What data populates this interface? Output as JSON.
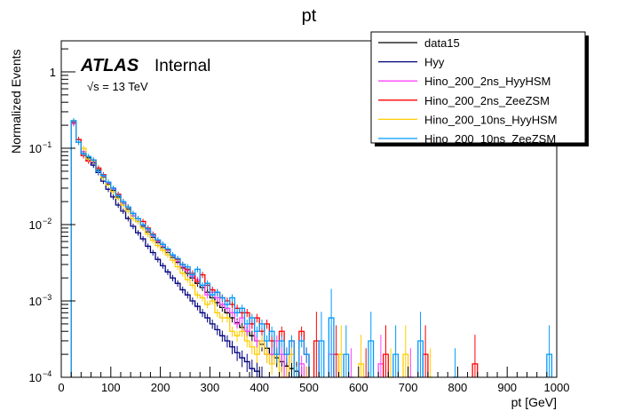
{
  "chart_data": {
    "type": "line",
    "style": "step-histogram",
    "title": "pt",
    "xlabel": "pt [GeV]",
    "ylabel": "Normalized Events",
    "xlim": [
      0,
      1000
    ],
    "ylim": [
      0.0001,
      2.55
    ],
    "yscale": "log",
    "grid": false,
    "legend_position": "top-right",
    "x_ticks": [
      "0",
      "100",
      "200",
      "300",
      "400",
      "500",
      "600",
      "700",
      "800",
      "900",
      "1000"
    ],
    "y_ticks": [
      {
        "label": "1",
        "exp": ""
      },
      {
        "label": "10",
        "exp": "−1"
      },
      {
        "label": "10",
        "exp": "−2"
      },
      {
        "label": "10",
        "exp": "−3"
      },
      {
        "label": "10",
        "exp": "−4"
      }
    ],
    "annotations": {
      "atlas": "ATLAS",
      "internal": "Internal",
      "energy": "√s = 13 TeV"
    },
    "bin_width": 10,
    "x": [
      25,
      35,
      45,
      55,
      65,
      75,
      85,
      95,
      105,
      115,
      125,
      135,
      145,
      155,
      165,
      175,
      185,
      195,
      205,
      215,
      225,
      235,
      245,
      255,
      265,
      275,
      285,
      295,
      305,
      315,
      325,
      335,
      345,
      355,
      365,
      375,
      385,
      395,
      405,
      415,
      425,
      435,
      445,
      455,
      465,
      475,
      485,
      495
    ],
    "series": [
      {
        "name": "data15",
        "color": "#000000",
        "values": [
          0.22,
          0.12,
          0.085,
          0.075,
          0.064,
          0.052,
          0.042,
          0.034,
          0.028,
          0.023,
          0.019,
          0.016,
          0.013,
          0.011,
          0.0095,
          0.008,
          0.0068,
          0.0058,
          0.005,
          0.0043,
          0.0037,
          0.0032,
          0.0027,
          0.0023,
          0.002,
          0.0017,
          0.0015,
          0.0013,
          0.0011,
          0.00095,
          0.00082,
          0.0007,
          0.0006,
          0.00052,
          0.00045,
          0.0004,
          0.00035,
          0.0003,
          0.00027,
          0.00024,
          0.0002,
          0.00018,
          0.00016,
          0.00014,
          0.00013,
          0.00012,
          0.0001,
          0.0001
        ],
        "tail": []
      },
      {
        "name": "Hyy",
        "color": "#00007f",
        "values": [
          0.21,
          0.13,
          0.09,
          0.07,
          0.06,
          0.048,
          0.037,
          0.029,
          0.023,
          0.018,
          0.015,
          0.012,
          0.0095,
          0.0078,
          0.0065,
          0.0052,
          0.0043,
          0.0035,
          0.0029,
          0.0024,
          0.002,
          0.0017,
          0.0014,
          0.0012,
          0.001,
          0.00085,
          0.0007,
          0.0006,
          0.0005,
          0.00042,
          0.00035,
          0.0003,
          0.00025,
          0.00021,
          0.00018,
          0.00016,
          0.00013,
          0.00012,
          0.0001,
          0,
          0,
          0,
          0,
          0,
          0,
          0,
          0,
          0
        ],
        "tail": []
      },
      {
        "name": "Hino_200_2ns_HyyHSM",
        "color": "#ff44ff",
        "values": [
          0.21,
          0.12,
          0.09,
          0.07,
          0.066,
          0.05,
          0.043,
          0.035,
          0.029,
          0.024,
          0.019,
          0.017,
          0.013,
          0.012,
          0.0098,
          0.0085,
          0.007,
          0.006,
          0.0052,
          0.0046,
          0.0039,
          0.0033,
          0.0028,
          0.0025,
          0.0021,
          0.0019,
          0.0016,
          0.0012,
          0.0013,
          0.0011,
          0.0009,
          0.0008,
          0.0007,
          0.0005,
          0.0006,
          0.0004,
          0.0005,
          0.0003,
          0.0003,
          0.0002,
          0.0002,
          0.0003,
          0.0002,
          0.0001,
          0.0002,
          0,
          0.00015,
          0.0001
        ],
        "tail": [
          [
            545,
            0.0002
          ],
          [
            585,
            0.0001
          ],
          [
            645,
            0.00015
          ],
          [
            705,
            0.0001
          ]
        ]
      },
      {
        "name": "Hino_200_2ns_ZeeZSM",
        "color": "#ff0000",
        "values": [
          0.22,
          0.13,
          0.08,
          0.068,
          0.07,
          0.055,
          0.045,
          0.036,
          0.03,
          0.025,
          0.02,
          0.017,
          0.014,
          0.012,
          0.011,
          0.009,
          0.0075,
          0.0062,
          0.0055,
          0.0047,
          0.004,
          0.0035,
          0.003,
          0.0026,
          0.0023,
          0.0018,
          0.0022,
          0.0016,
          0.0014,
          0.0013,
          0.0011,
          0.001,
          0.0009,
          0.0008,
          0.0007,
          0.0007,
          0.0005,
          0.0006,
          0.0004,
          0.0005,
          0.0003,
          0.0002,
          0.0004,
          0.0002,
          0.0003,
          0.0001,
          0.0004,
          0.0002
        ],
        "tail": [
          [
            515,
            0.0003
          ],
          [
            555,
            0.0002
          ],
          [
            615,
            0.0001
          ],
          [
            655,
            0.0002
          ],
          [
            735,
            0.0002
          ],
          [
            835,
            0.00015
          ]
        ]
      },
      {
        "name": "Hino_200_10ns_HyyHSM",
        "color": "#ffcc00",
        "values": [
          0.23,
          0.12,
          0.1,
          0.072,
          0.068,
          0.05,
          0.041,
          0.033,
          0.027,
          0.022,
          0.018,
          0.015,
          0.012,
          0.011,
          0.009,
          0.0075,
          0.0062,
          0.0053,
          0.0046,
          0.004,
          0.0034,
          0.0028,
          0.0023,
          0.0019,
          0.0016,
          0.0012,
          0.0011,
          0.0009,
          0.001,
          0.0007,
          0.0006,
          0.0006,
          0.0004,
          0.00035,
          0.0004,
          0.0003,
          0.00025,
          0.0002,
          0.0003,
          0.0002,
          0.00015,
          0.0002,
          0.0001,
          0.0001,
          0.0002,
          0.0001,
          0,
          0.0001
        ],
        "tail": [
          [
            565,
            0.0002
          ],
          [
            605,
            0.00015
          ],
          [
            665,
            0.0001
          ],
          [
            695,
            0.0002
          ],
          [
            745,
            0.0001
          ]
        ]
      },
      {
        "name": "Hino_200_10ns_ZeeZSM",
        "color": "#0099ff",
        "values": [
          0.23,
          0.12,
          0.085,
          0.078,
          0.07,
          0.05,
          0.044,
          0.036,
          0.03,
          0.024,
          0.02,
          0.017,
          0.014,
          0.012,
          0.01,
          0.0088,
          0.0073,
          0.0063,
          0.0055,
          0.0048,
          0.004,
          0.0036,
          0.003,
          0.0028,
          0.0022,
          0.0026,
          0.0016,
          0.0017,
          0.0012,
          0.0013,
          0.0011,
          0.0009,
          0.0011,
          0.0007,
          0.0008,
          0.0005,
          0.0006,
          0.0004,
          0.0005,
          0.0003,
          0.0004,
          0.0002,
          0.0003,
          0.0002,
          0.0003,
          0.0001,
          0.0003,
          0.0002
        ],
        "tail": [
          [
            525,
            0.0003
          ],
          [
            545,
            0.0006
          ],
          [
            575,
            0.0002
          ],
          [
            625,
            0.0003
          ],
          [
            675,
            0.0002
          ],
          [
            725,
            0.0003
          ],
          [
            795,
            0.0001
          ],
          [
            985,
            0.0002
          ]
        ]
      }
    ]
  }
}
